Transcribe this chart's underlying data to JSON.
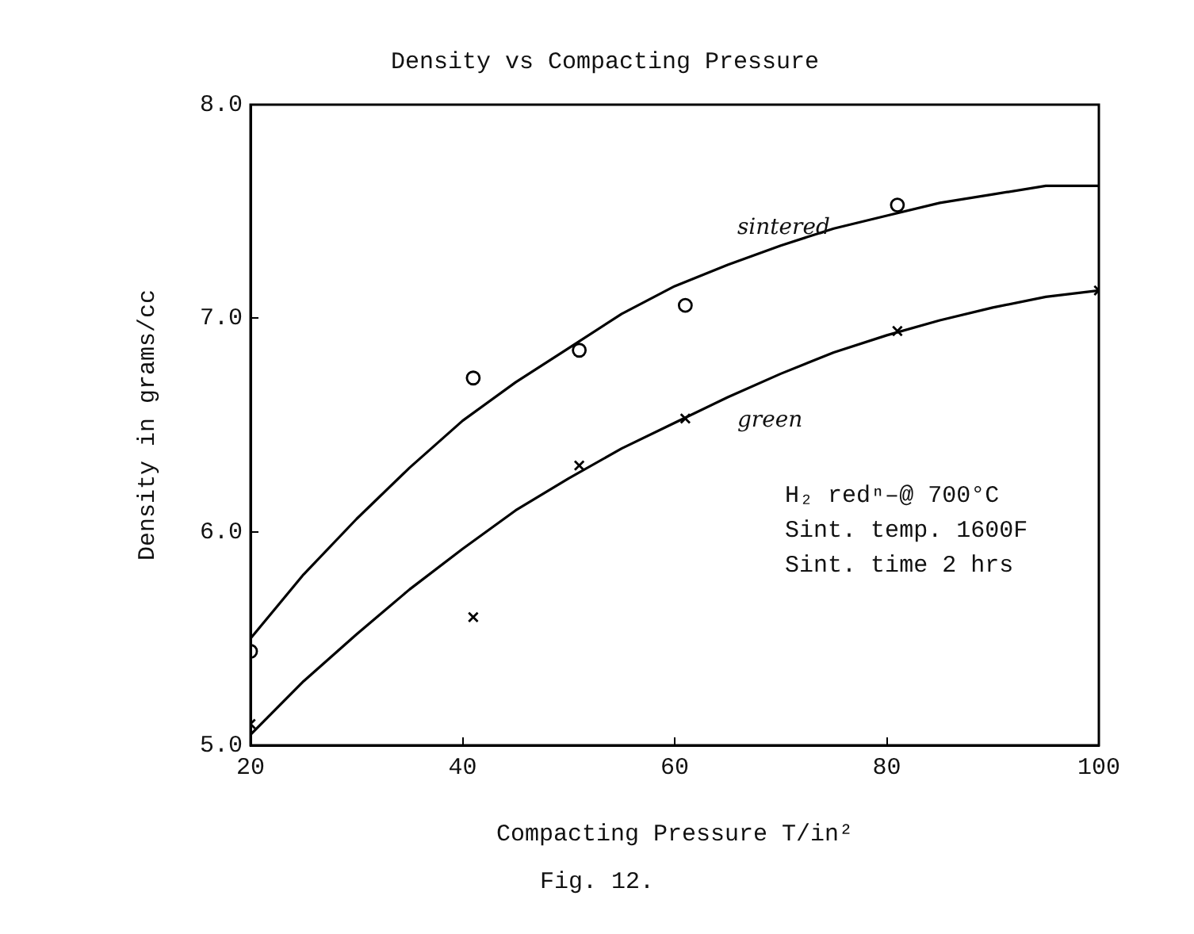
{
  "chart_data": {
    "type": "line",
    "title": "Density vs Compacting Pressure",
    "xlabel": "Compacting Pressure T/in²",
    "ylabel": "Density in grams/cc",
    "xlim": [
      20,
      100
    ],
    "xticks": [
      20,
      40,
      60,
      80,
      100
    ],
    "ylim": [
      5,
      8
    ],
    "yticks": [
      {
        "value": 5,
        "label": "5.0"
      },
      {
        "value": 6,
        "label": "6.0"
      },
      {
        "value": 7,
        "label": "7.0"
      },
      {
        "value": 8,
        "label": "8.0"
      }
    ],
    "grid": false,
    "legend": false,
    "series": [
      {
        "name": "sintered",
        "type": "line",
        "color": "#000000",
        "marker": "none",
        "x": [
          20,
          25,
          30,
          35,
          40,
          45,
          50,
          55,
          60,
          65,
          70,
          75,
          80,
          85,
          90,
          95,
          100
        ],
        "values": [
          5.5,
          5.8,
          6.06,
          6.3,
          6.52,
          6.7,
          6.86,
          7.02,
          7.15,
          7.25,
          7.34,
          7.42,
          7.48,
          7.54,
          7.58,
          7.62,
          7.62
        ]
      },
      {
        "name": "green",
        "type": "line",
        "color": "#000000",
        "marker": "none",
        "x": [
          20,
          25,
          30,
          35,
          40,
          45,
          50,
          55,
          60,
          65,
          70,
          75,
          80,
          85,
          90,
          95,
          100
        ],
        "values": [
          5.05,
          5.3,
          5.52,
          5.73,
          5.92,
          6.1,
          6.25,
          6.39,
          6.51,
          6.63,
          6.74,
          6.84,
          6.92,
          6.99,
          7.05,
          7.1,
          7.13
        ]
      },
      {
        "type": "scatter",
        "color": "#000000",
        "marker": "circle",
        "x": [
          20,
          41,
          51,
          61,
          81
        ],
        "values": [
          5.44,
          6.72,
          6.85,
          7.06,
          7.53
        ]
      },
      {
        "type": "scatter",
        "color": "#000000",
        "marker": "cross",
        "x": [
          20,
          41,
          51,
          61,
          81,
          100
        ],
        "values": [
          5.1,
          5.6,
          6.31,
          6.53,
          6.94,
          7.13
        ]
      }
    ],
    "annotations": [
      "H₂ redⁿ–@ 700°C",
      "Sint. temp. 1600F",
      "Sint. time 2 hrs",
      "Fig. 12."
    ]
  }
}
